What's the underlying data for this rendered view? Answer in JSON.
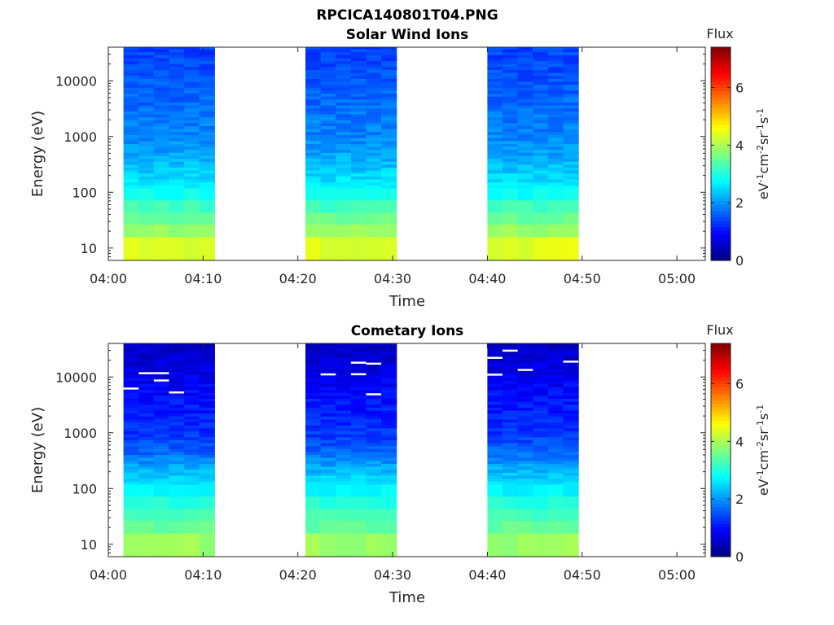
{
  "figure_title": "RPCICA140801T04.PNG",
  "colorbar": {
    "label_html": "eV<sup>-1</sup>cm<sup>-2</sup>sr<sup>-1</sup>s<sup>-1</sup>"
  },
  "chart_data": [
    {
      "type": "heatmap",
      "title": "Solar Wind Ions",
      "xlabel": "Time",
      "ylabel": "Energy (eV)",
      "x_tick_labels": [
        "04:00",
        "04:10",
        "04:20",
        "04:30",
        "04:40",
        "04:50",
        "05:00"
      ],
      "y_tick_labels": [
        "10",
        "100",
        "1000",
        "10000"
      ],
      "y_scale": "log",
      "ylim": [
        6,
        40000
      ],
      "xlim_minutes": [
        0,
        63
      ],
      "colorbar_title": "Flux",
      "colorbar_label": "eV-1cm-2sr-1s-1",
      "colorbar_range": [
        0,
        7.4
      ],
      "colorbar_ticks": [
        "0",
        "2",
        "4",
        "6"
      ],
      "colormap": "jet",
      "data_blocks_minutes": [
        [
          1.6,
          11.2
        ],
        [
          20.8,
          30.4
        ],
        [
          40.0,
          49.6
        ]
      ],
      "flux_profile": {
        "energies_eV": [
          10,
          30,
          60,
          100,
          200,
          500,
          1000,
          2000,
          5000,
          10000,
          20000,
          40000
        ],
        "flux": [
          4.4,
          3.6,
          3.2,
          2.8,
          2.5,
          2.1,
          1.9,
          1.8,
          1.65,
          1.55,
          1.45,
          1.4
        ]
      }
    },
    {
      "type": "heatmap",
      "title": "Cometary Ions",
      "xlabel": "Time",
      "ylabel": "Energy (eV)",
      "x_tick_labels": [
        "04:00",
        "04:10",
        "04:20",
        "04:30",
        "04:40",
        "04:50",
        "05:00"
      ],
      "y_tick_labels": [
        "10",
        "100",
        "1000",
        "10000"
      ],
      "y_scale": "log",
      "ylim": [
        6,
        40000
      ],
      "xlim_minutes": [
        0,
        63
      ],
      "colorbar_title": "Flux",
      "colorbar_label": "eV-1cm-2sr-1s-1",
      "colorbar_range": [
        0,
        7.4
      ],
      "colorbar_ticks": [
        "0",
        "2",
        "4",
        "6"
      ],
      "colormap": "jet",
      "data_blocks_minutes": [
        [
          1.6,
          11.2
        ],
        [
          20.8,
          30.4
        ],
        [
          40.0,
          49.6
        ]
      ],
      "flux_profile": {
        "energies_eV": [
          10,
          30,
          60,
          100,
          200,
          500,
          1000,
          2000,
          5000,
          10000,
          20000,
          40000
        ],
        "flux": [
          3.9,
          3.3,
          3.0,
          2.7,
          2.3,
          1.6,
          1.3,
          1.15,
          1.0,
          0.8,
          0.6,
          0.5
        ]
      }
    }
  ]
}
